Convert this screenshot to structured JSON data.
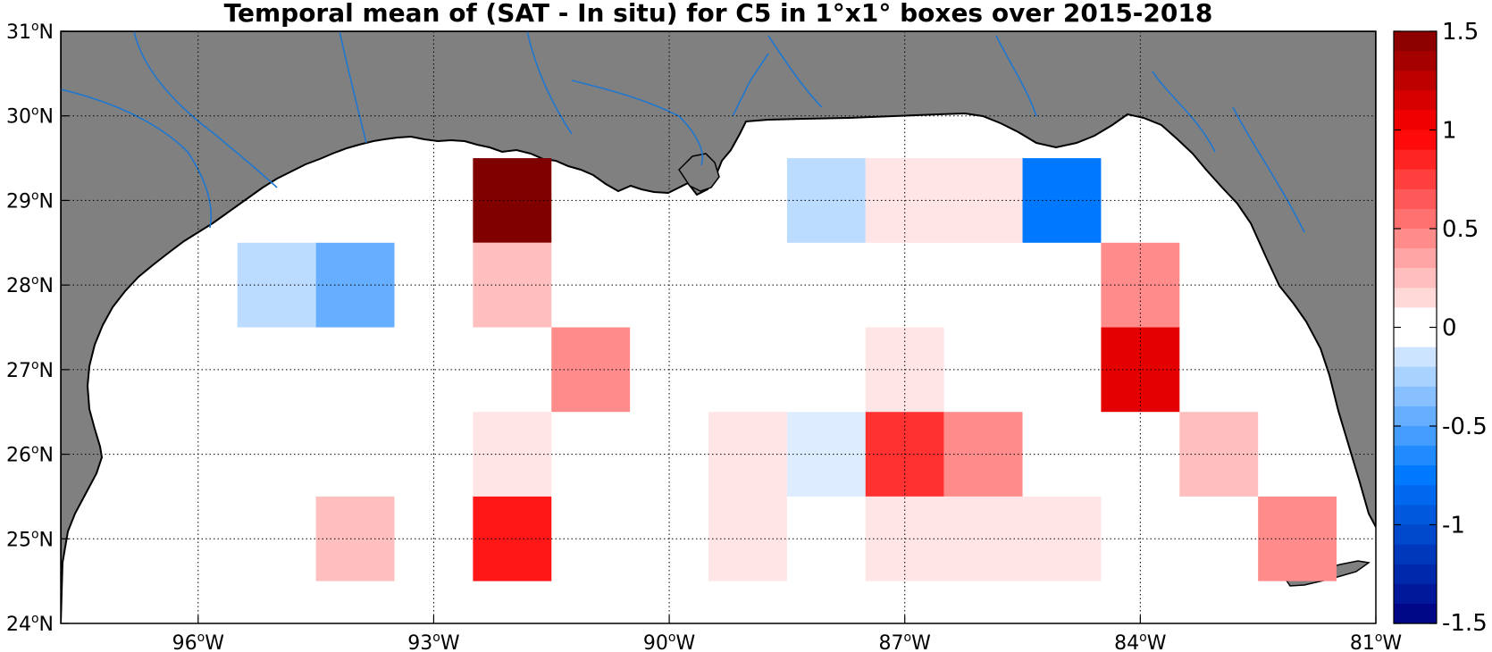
{
  "title": "Temporal mean of (SAT - In situ) for C5 in 1°x1° boxes over 2015-2018",
  "map": {
    "lon_range": [
      -97.75,
      -81
    ],
    "lat_range": [
      24,
      31
    ],
    "x_ticks": [
      {
        "lon": -96,
        "deg": "96",
        "hemi": "W"
      },
      {
        "lon": -93,
        "deg": "93",
        "hemi": "W"
      },
      {
        "lon": -90,
        "deg": "90",
        "hemi": "W"
      },
      {
        "lon": -87,
        "deg": "87",
        "hemi": "W"
      },
      {
        "lon": -84,
        "deg": "84",
        "hemi": "W"
      },
      {
        "lon": -81,
        "deg": "81",
        "hemi": "W"
      }
    ],
    "y_ticks": [
      {
        "lat": 24,
        "deg": "24",
        "hemi": "N"
      },
      {
        "lat": 25,
        "deg": "25",
        "hemi": "N"
      },
      {
        "lat": 26,
        "deg": "26",
        "hemi": "N"
      },
      {
        "lat": 27,
        "deg": "27",
        "hemi": "N"
      },
      {
        "lat": 28,
        "deg": "28",
        "hemi": "N"
      },
      {
        "lat": 29,
        "deg": "29",
        "hemi": "N"
      },
      {
        "lat": 30,
        "deg": "30",
        "hemi": "N"
      },
      {
        "lat": 31,
        "deg": "31",
        "hemi": "N"
      }
    ],
    "colors": {
      "land": "#808080",
      "ocean": "#ffffff",
      "river": "#1f77d0",
      "coast": "#000000",
      "grid": "#000000"
    }
  },
  "chart_data": {
    "type": "heatmap",
    "title": "Temporal mean of (SAT - In situ) for C5 in 1°x1° boxes over 2015-2018",
    "xlabel": "",
    "ylabel": "",
    "grid": true,
    "box_size_deg": 1,
    "cells": [
      {
        "lon": -95,
        "lat": 28,
        "value": -0.2
      },
      {
        "lon": -94,
        "lat": 28,
        "value": -0.45
      },
      {
        "lon": -92,
        "lat": 29,
        "value": 1.5
      },
      {
        "lon": -92,
        "lat": 28,
        "value": 0.25
      },
      {
        "lon": -91,
        "lat": 27,
        "value": 0.45
      },
      {
        "lon": -92,
        "lat": 26,
        "value": 0.1
      },
      {
        "lon": -92,
        "lat": 25,
        "value": 0.9
      },
      {
        "lon": -94,
        "lat": 25,
        "value": 0.25
      },
      {
        "lon": -89,
        "lat": 26,
        "value": 0.1
      },
      {
        "lon": -89,
        "lat": 25,
        "value": 0.1
      },
      {
        "lon": -88,
        "lat": 29,
        "value": -0.2
      },
      {
        "lon": -88,
        "lat": 26,
        "value": -0.1
      },
      {
        "lon": -87,
        "lat": 29,
        "value": 0.1
      },
      {
        "lon": -86,
        "lat": 29,
        "value": 0.1
      },
      {
        "lon": -85,
        "lat": 29,
        "value": -0.75
      },
      {
        "lon": -87,
        "lat": 27,
        "value": 0.1
      },
      {
        "lon": -87,
        "lat": 26,
        "value": 0.8
      },
      {
        "lon": -86,
        "lat": 26,
        "value": 0.45
      },
      {
        "lon": -87,
        "lat": 25,
        "value": 0.1
      },
      {
        "lon": -86,
        "lat": 25,
        "value": 0.1
      },
      {
        "lon": -85,
        "lat": 25,
        "value": 0.1
      },
      {
        "lon": -84,
        "lat": 28,
        "value": 0.45
      },
      {
        "lon": -84,
        "lat": 27,
        "value": 1.1
      },
      {
        "lon": -83,
        "lat": 26,
        "value": 0.25
      },
      {
        "lon": -82,
        "lat": 25,
        "value": 0.45
      }
    ],
    "colorbar": {
      "range": [
        -1.5,
        1.5
      ],
      "step": 0.1,
      "ticks": [
        1.5,
        1,
        0.5,
        0,
        -0.5,
        -1,
        -1.5
      ],
      "tick_labels": [
        "1.5",
        "1",
        "0.5",
        "0",
        "-0.5",
        "-1",
        "-1.5"
      ]
    }
  }
}
